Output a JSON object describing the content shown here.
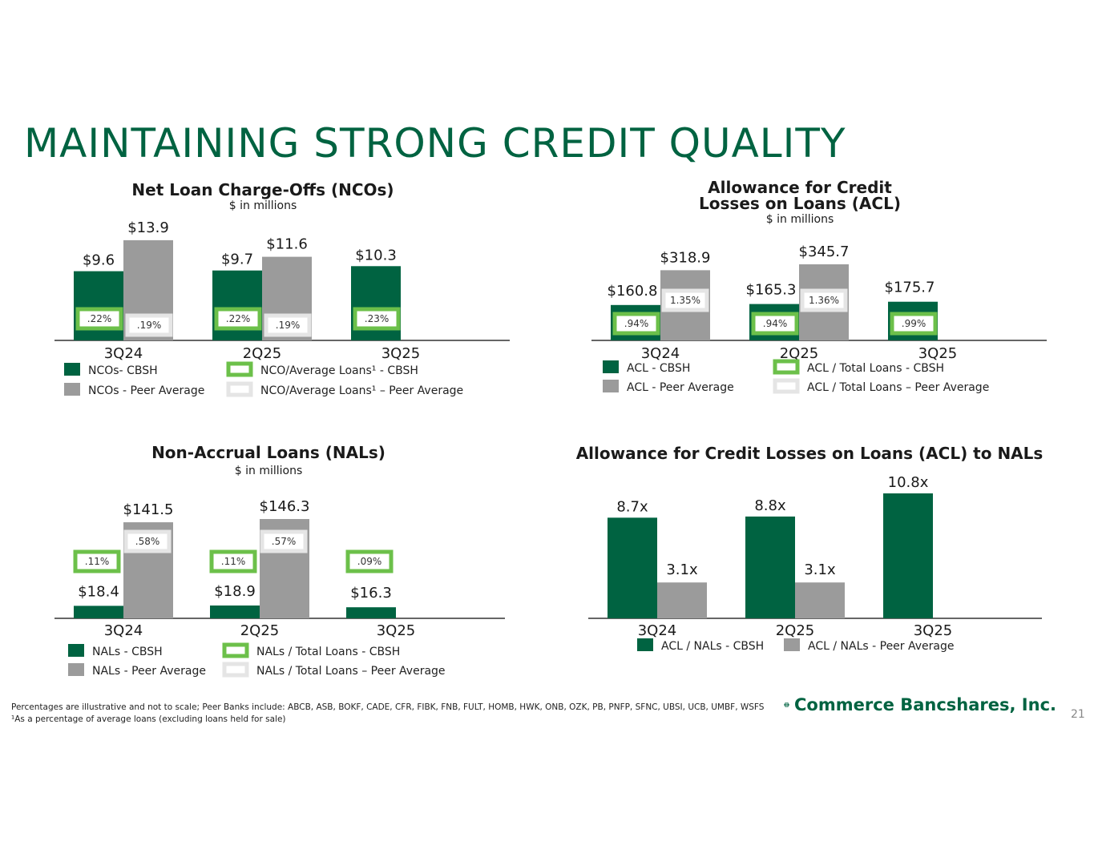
{
  "title": "MAINTAINING STRONG CREDIT QUALITY",
  "colors": {
    "cbsh": "#006341",
    "peer": "#9b9b9b",
    "pct_cbsh": "#6cc04a",
    "pct_peer": "#e5e5e5",
    "title": "#006341"
  },
  "footnotes": [
    "Percentages are illustrative and not to scale; Peer Banks include: ABCB, ASB, BOKF, CADE, CFR, FIBK, FNB, FULT, HOMB, HWK, ONB, OZK, PB, PNFP, SFNC, UBSI, UCB, UMBF, WSFS",
    "¹As a percentage of average loans (excluding loans held for sale)"
  ],
  "logo": {
    "text": "Commerce Bancshares, Inc.",
    "icon": "globe-icon"
  },
  "page_number": "21",
  "chart_data": [
    {
      "id": "nco",
      "type": "bar",
      "title": "Net Loan Charge-Offs (NCOs)",
      "subtitle": "$ in millions",
      "categories": [
        "3Q24",
        "2Q25",
        "3Q25"
      ],
      "series": [
        {
          "name": "NCOs- CBSH",
          "values": [
            9.6,
            9.7,
            10.3
          ],
          "labels": [
            "$9.6",
            "$9.7",
            "$10.3"
          ],
          "pct": [
            ".22%",
            ".22%",
            ".23%"
          ]
        },
        {
          "name": "NCOs - Peer Average",
          "values": [
            13.9,
            11.6,
            null
          ],
          "labels": [
            "$13.9",
            "$11.6",
            null
          ],
          "pct": [
            ".19%",
            ".19%",
            null
          ]
        }
      ],
      "legend": [
        "NCOs- CBSH",
        "NCOs - Peer Average",
        "NCO/Average Loans¹ - CBSH",
        "NCO/Average Loans¹ – Peer Average"
      ],
      "ylim": [
        0,
        15
      ]
    },
    {
      "id": "acl",
      "type": "bar",
      "title": [
        "Allowance for Credit",
        "Losses on Loans (ACL)"
      ],
      "subtitle": "$ in millions",
      "categories": [
        "3Q24",
        "2Q25",
        "3Q25"
      ],
      "series": [
        {
          "name": "ACL - CBSH",
          "values": [
            160.8,
            165.3,
            175.7
          ],
          "labels": [
            "$160.8",
            "$165.3",
            "$175.7"
          ],
          "pct": [
            ".94%",
            ".94%",
            ".99%"
          ]
        },
        {
          "name": "ACL - Peer Average",
          "values": [
            318.9,
            345.7,
            null
          ],
          "labels": [
            "$318.9",
            "$345.7",
            null
          ],
          "pct": [
            "1.35%",
            "1.36%",
            null
          ]
        }
      ],
      "legend": [
        "ACL - CBSH",
        "ACL - Peer Average",
        "ACL / Total Loans - CBSH",
        "ACL / Total Loans – Peer Average"
      ],
      "ylim": [
        0,
        1100
      ]
    },
    {
      "id": "nal",
      "type": "bar",
      "title": "Non-Accrual Loans (NALs)",
      "subtitle": "$ in millions",
      "categories": [
        "3Q24",
        "2Q25",
        "3Q25"
      ],
      "series": [
        {
          "name": "NALs - CBSH",
          "values": [
            18.4,
            18.9,
            16.3
          ],
          "labels": [
            "$18.4",
            "$18.9",
            "$16.3"
          ],
          "pct": [
            ".11%",
            ".11%",
            ".09%"
          ]
        },
        {
          "name": "NALs - Peer Average",
          "values": [
            141.5,
            146.3,
            null
          ],
          "labels": [
            "$141.5",
            "$146.3",
            null
          ],
          "pct": [
            ".58%",
            ".57%",
            null
          ]
        }
      ],
      "legend": [
        "NALs - CBSH",
        "NALs - Peer Average",
        "NALs / Total Loans - CBSH",
        "NALs / Total Loans – Peer Average"
      ],
      "ylim": [
        0,
        175
      ]
    },
    {
      "id": "acl_nal",
      "type": "bar",
      "title": "Allowance for Credit Losses on Loans (ACL) to NALs",
      "categories": [
        "3Q24",
        "2Q25",
        "3Q25"
      ],
      "series": [
        {
          "name": "ACL / NALs - CBSH",
          "values": [
            8.7,
            8.8,
            10.8
          ],
          "labels": [
            "8.7x",
            "8.8x",
            "10.8x"
          ]
        },
        {
          "name": "ACL / NALs - Peer Average",
          "values": [
            3.1,
            3.1,
            null
          ],
          "labels": [
            "3.1x",
            "3.1x",
            null
          ]
        }
      ],
      "legend": [
        "ACL / NALs - CBSH",
        "ACL / NALs - Peer Average"
      ],
      "ylim": [
        0,
        12
      ]
    }
  ]
}
